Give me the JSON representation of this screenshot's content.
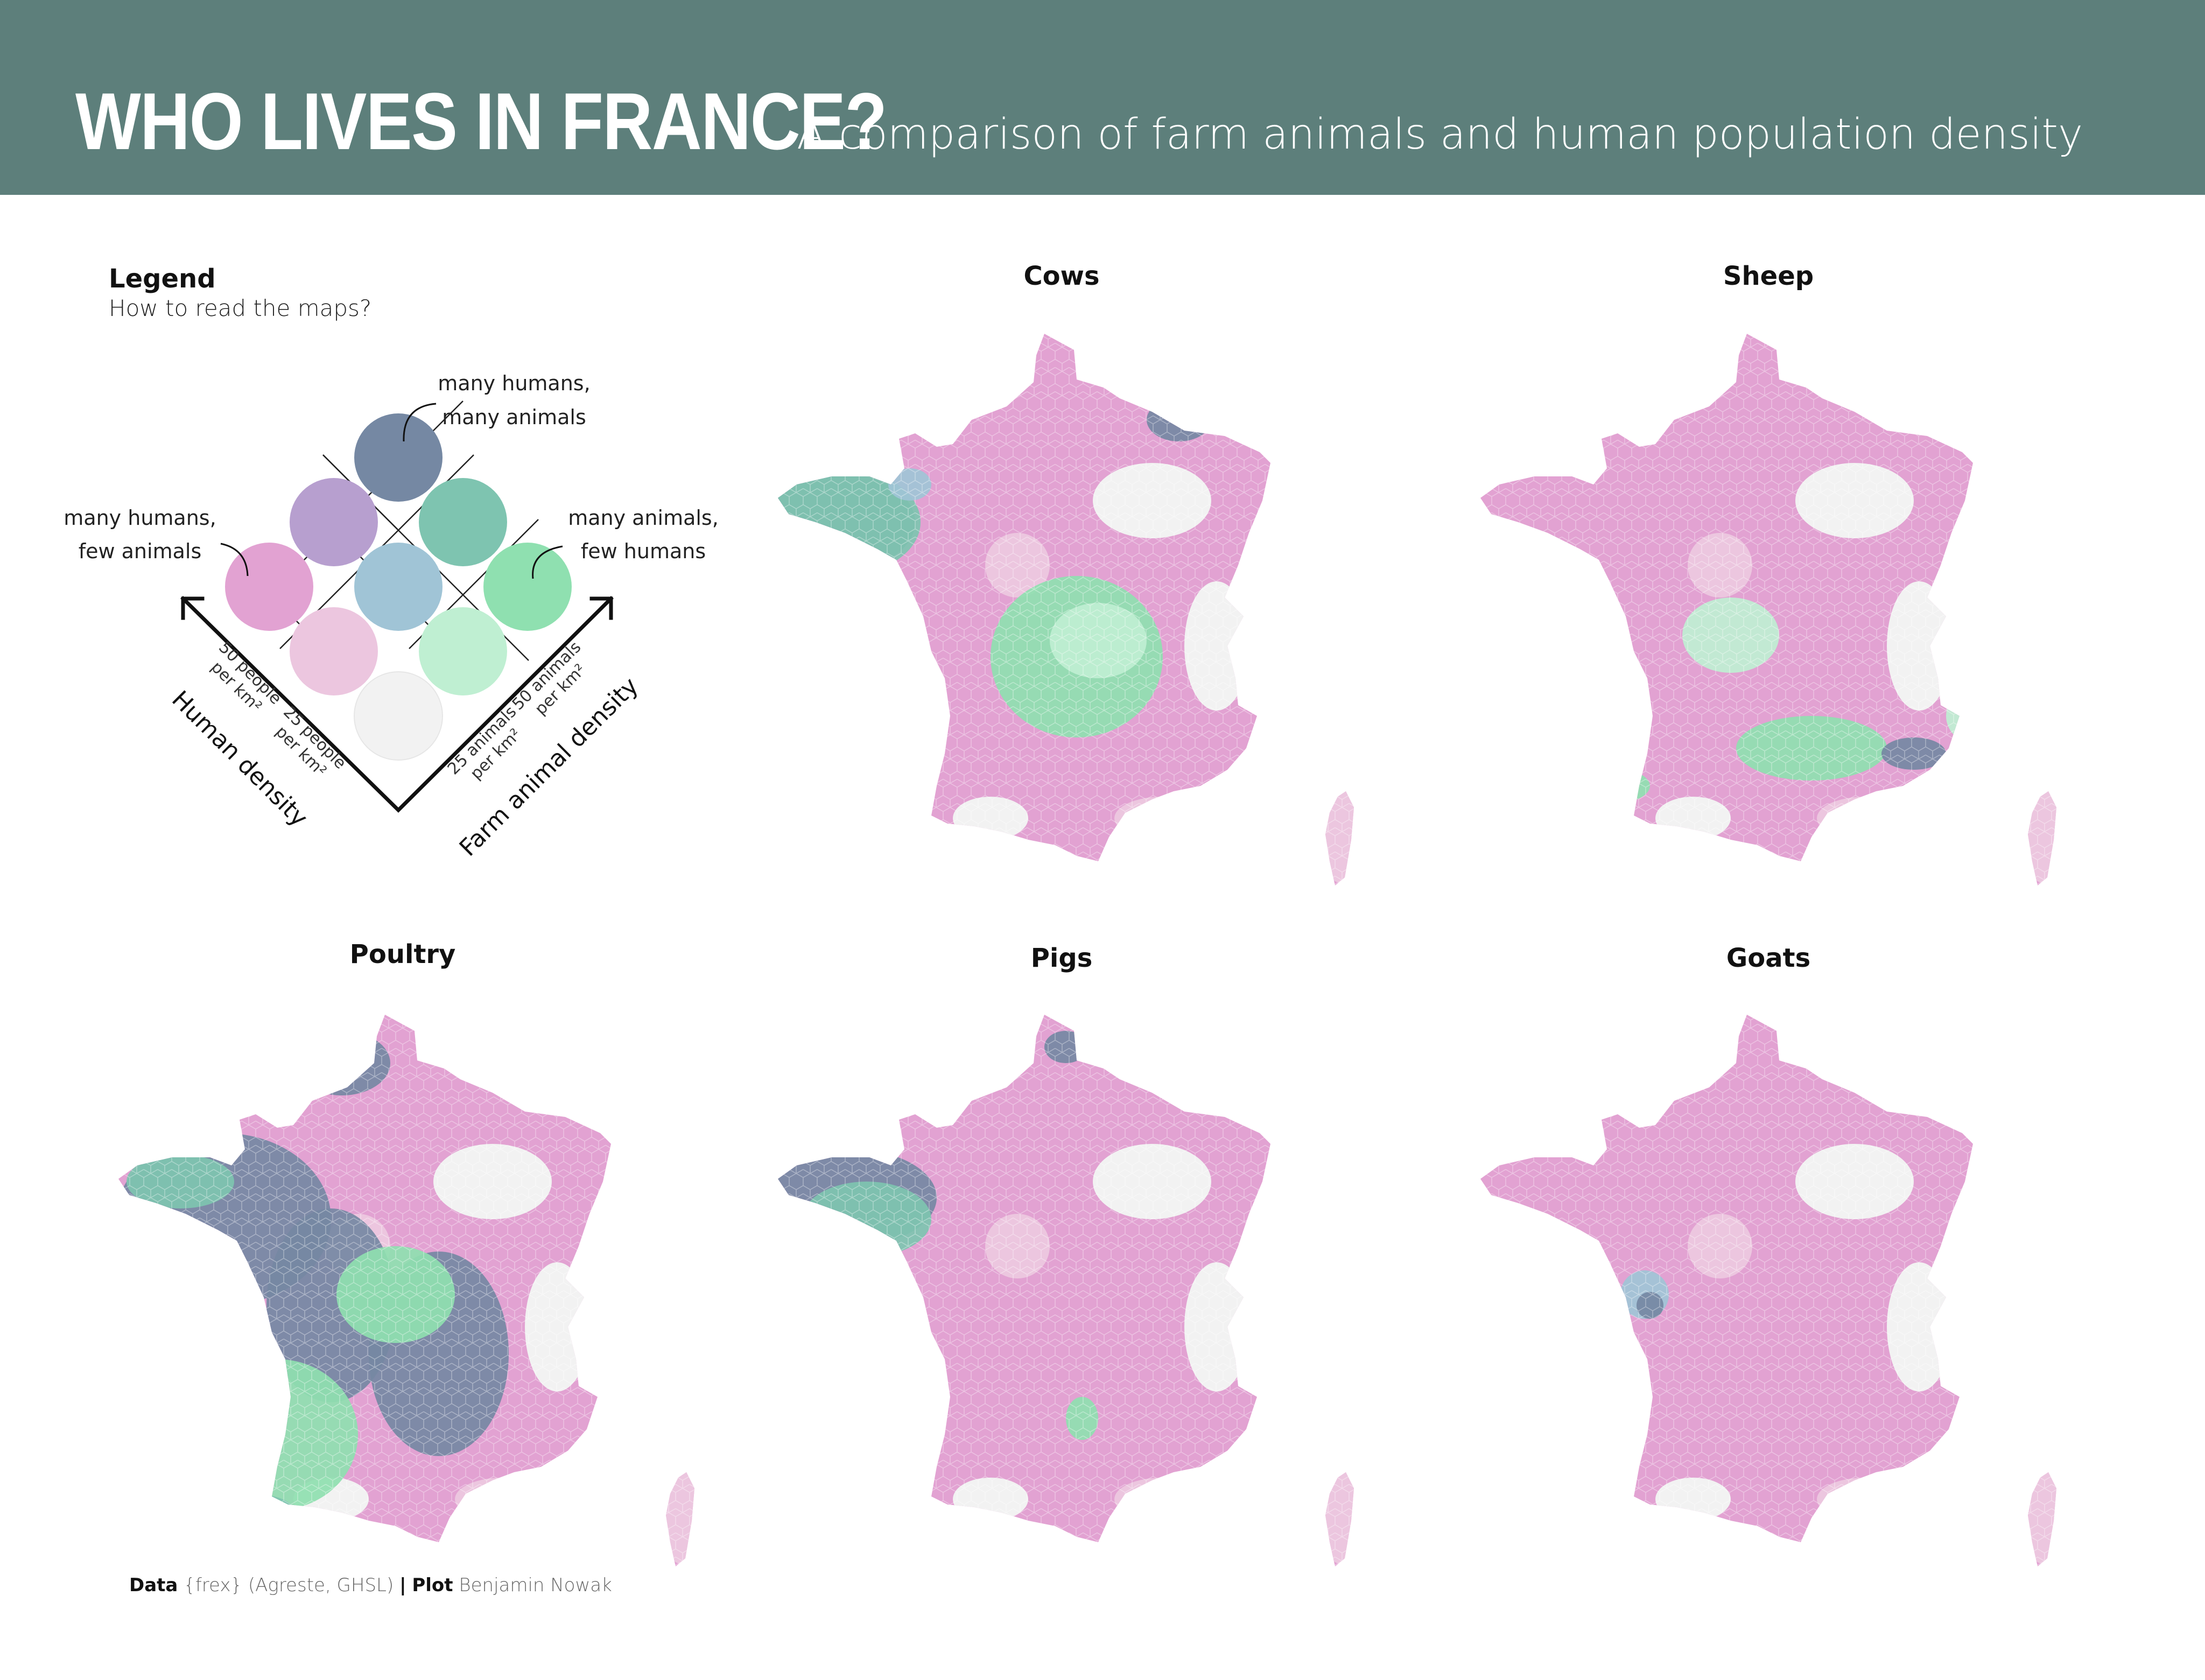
{
  "header": {
    "title": "WHO LIVES IN FRANCE?",
    "subtitle": "A comparison of farm animals and human population density",
    "background_color": "#5d7f7b"
  },
  "legend": {
    "title": "Legend",
    "subtitle": "How to read the maps?",
    "annotations": {
      "top_line1": "many humans,",
      "top_line2": "many animals",
      "left_line1": "many humans,",
      "left_line2": "few animals",
      "right_line1": "many animals,",
      "right_line2": "few humans"
    },
    "axes": {
      "human": "Human density",
      "animal": "Farm animal density",
      "human_ticks": [
        {
          "line1": "50 people",
          "line2": "per km²"
        },
        {
          "line1": "25 people",
          "line2": "per km²"
        }
      ],
      "animal_ticks": [
        {
          "line1": "25 animals",
          "line2": "per km²"
        },
        {
          "line1": "50 animals",
          "line2": "per km²"
        }
      ]
    },
    "palette": {
      "both_high": "#7588a3",
      "humans_high_animals_mid": "#b79fcf",
      "animals_high_humans_mid": "#7ec4b0",
      "humans_high_animals_low": "#e2a2d2",
      "both_mid": "#a0c4d6",
      "animals_high_humans_low": "#8fe0b0",
      "humans_mid_animals_low": "#ecc6df",
      "animals_mid_humans_low": "#bfefd2",
      "both_low": "#f2f2f2"
    }
  },
  "maps": [
    {
      "id": "cows",
      "title": "Cows"
    },
    {
      "id": "sheep",
      "title": "Sheep"
    },
    {
      "id": "poultry",
      "title": "Poultry"
    },
    {
      "id": "pigs",
      "title": "Pigs"
    },
    {
      "id": "goats",
      "title": "Goats"
    }
  ],
  "credits": {
    "data_label": "Data",
    "data_value": "{frex} (Agreste, GHSL)",
    "separator": "|",
    "plot_label": "Plot",
    "plot_value": "Benjamin Nowak"
  }
}
